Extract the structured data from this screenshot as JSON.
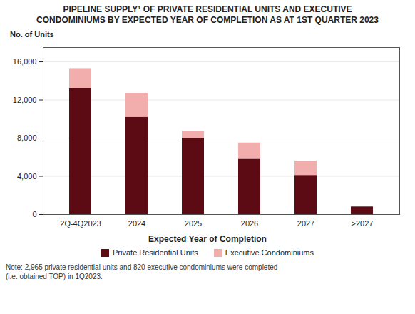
{
  "chart_data": {
    "type": "bar",
    "title": "PIPELINE SUPPLY¹ OF PRIVATE RESIDENTIAL UNITS AND EXECUTIVE\nCONDOMINIUMS BY EXPECTED YEAR OF COMPLETION AS AT 1ST QUARTER 2023",
    "x_label": "Expected Year of Completion",
    "y_label": "No. of Units",
    "note": "Note: 2,965 private residential units and 820 executive condominiums were completed\n(i.e. obtained TOP) in 1Q2023.",
    "categories": [
      "2Q-4Q2023",
      "2024",
      "2025",
      "2026",
      "2027",
      ">2027"
    ],
    "series": [
      {
        "name": "Private Residential Units",
        "color": "#5C0A14",
        "values": [
          13200,
          10200,
          8000,
          5800,
          4100,
          800
        ]
      },
      {
        "name": "Executive Condominiums",
        "color": "#F2AEAD",
        "values": [
          2100,
          2500,
          700,
          1700,
          1500,
          0
        ]
      }
    ],
    "stacked": true,
    "ylim": [
      0,
      17500
    ],
    "yticks": [
      0,
      {
        "value": 4000,
        "label": "4,000"
      },
      {
        "value": 8000,
        "label": "8,000"
      },
      {
        "value": 12000,
        "label": "12,000"
      },
      {
        "value": 16000,
        "label": "16,000"
      }
    ],
    "grid": true,
    "legend": "bottom"
  }
}
